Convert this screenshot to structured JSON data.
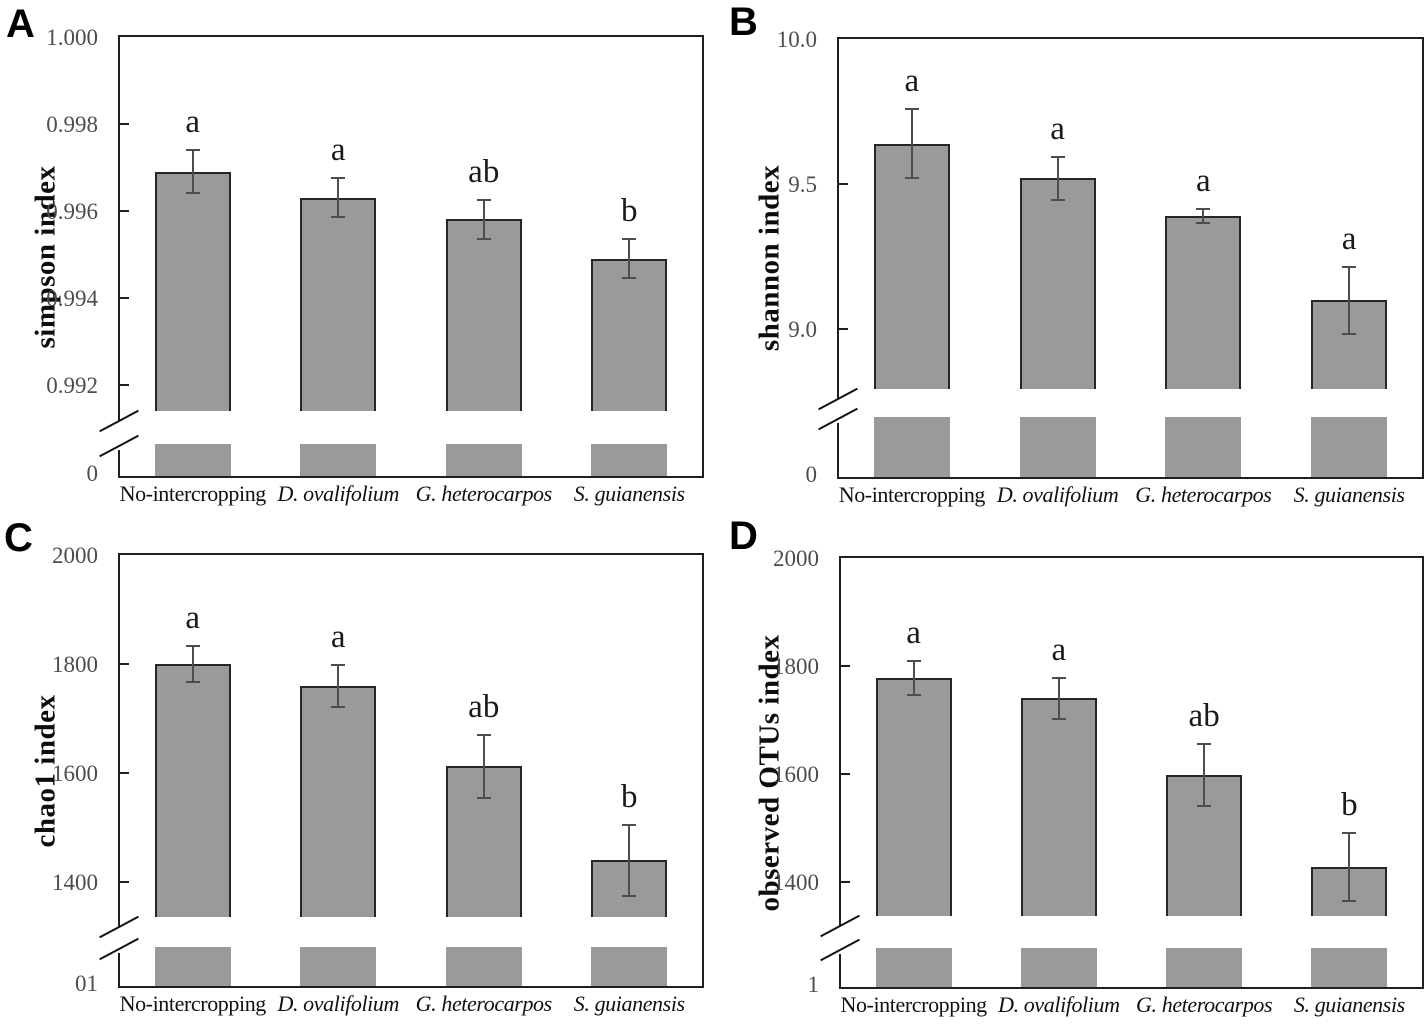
{
  "styles": {
    "bar_fill": "#9a9a9a",
    "bar_border": "#262626",
    "error_color": "#4d4d4d",
    "tick_text_color": "#4d4d4d",
    "axis_color": "#1f1f1f",
    "text_color": "#111111"
  },
  "categories": [
    {
      "label": "No-intercropping",
      "italic": false
    },
    {
      "label": "D. ovalifolium",
      "italic": true
    },
    {
      "label": "G. heterocarpos",
      "italic": true
    },
    {
      "label": "S. guianensis",
      "italic": true
    }
  ],
  "chart_data": [
    {
      "panel": "A",
      "type": "bar",
      "ylabel": "simpson index",
      "categories": [
        "No-intercropping",
        "D. ovalifolium",
        "G. heterocarpos",
        "S. guianensis"
      ],
      "values": [
        0.9969,
        0.9963,
        0.9958,
        0.9949
      ],
      "error_bars": [
        0.0005,
        0.00045,
        0.00045,
        0.00045
      ],
      "significance_letters": [
        "a",
        "a",
        "ab",
        "b"
      ],
      "yticks": [
        {
          "label": "1.000",
          "value": 1.0
        },
        {
          "label": "0.998",
          "value": 0.998
        },
        {
          "label": "0.996",
          "value": 0.996
        },
        {
          "label": "0.994",
          "value": 0.994
        },
        {
          "label": "0.992",
          "value": 0.992
        }
      ],
      "baseline_label": "0",
      "axis_break": true,
      "y_axis_top_value": 1.0,
      "y_value_at_break": 0.9914,
      "grid": false,
      "legend": null
    },
    {
      "panel": "B",
      "type": "bar",
      "ylabel": "shannon index",
      "categories": [
        "No-intercropping",
        "D. ovalifolium",
        "G. heterocarpos",
        "S. guianensis"
      ],
      "values": [
        9.64,
        9.52,
        9.39,
        9.1
      ],
      "error_bars": [
        0.12,
        0.075,
        0.025,
        0.115
      ],
      "significance_letters": [
        "a",
        "a",
        "a",
        "a"
      ],
      "yticks": [
        {
          "label": "10.0",
          "value": 10.0
        },
        {
          "label": "9.5",
          "value": 9.5
        },
        {
          "label": "9.0",
          "value": 9.0
        }
      ],
      "baseline_label": "0",
      "axis_break": true,
      "y_axis_top_value": 10.0,
      "y_value_at_break": 8.795,
      "grid": false,
      "legend": null
    },
    {
      "panel": "C",
      "type": "bar",
      "ylabel": "chao1 index",
      "categories": [
        "No-intercropping",
        "D. ovalifolium",
        "G. heterocarpos",
        "S. guianensis"
      ],
      "values": [
        1800,
        1760,
        1612,
        1440
      ],
      "error_bars": [
        33,
        38,
        58,
        65
      ],
      "significance_letters": [
        "a",
        "a",
        "ab",
        "b"
      ],
      "yticks": [
        {
          "label": "2000",
          "value": 2000
        },
        {
          "label": "1800",
          "value": 1800
        },
        {
          "label": "1600",
          "value": 1600
        },
        {
          "label": "1400",
          "value": 1400
        }
      ],
      "baseline_label": "01",
      "axis_break": true,
      "y_axis_top_value": 2000,
      "y_value_at_break": 1335,
      "grid": false,
      "legend": null
    },
    {
      "panel": "D",
      "type": "bar",
      "ylabel": "observed OTUs index",
      "categories": [
        "No-intercropping",
        "D. ovalifolium",
        "G. heterocarpos",
        "S. guianensis"
      ],
      "values": [
        1778,
        1740,
        1598,
        1428
      ],
      "error_bars": [
        32,
        38,
        58,
        63
      ],
      "significance_letters": [
        "a",
        "a",
        "ab",
        "b"
      ],
      "yticks": [
        {
          "label": "2000",
          "value": 2000
        },
        {
          "label": "1800",
          "value": 1800
        },
        {
          "label": "1600",
          "value": 1600
        },
        {
          "label": "1400",
          "value": 1400
        }
      ],
      "baseline_label": "1",
      "axis_break": true,
      "y_axis_top_value": 2000,
      "y_value_at_break": 1337,
      "grid": false,
      "legend": null
    }
  ]
}
